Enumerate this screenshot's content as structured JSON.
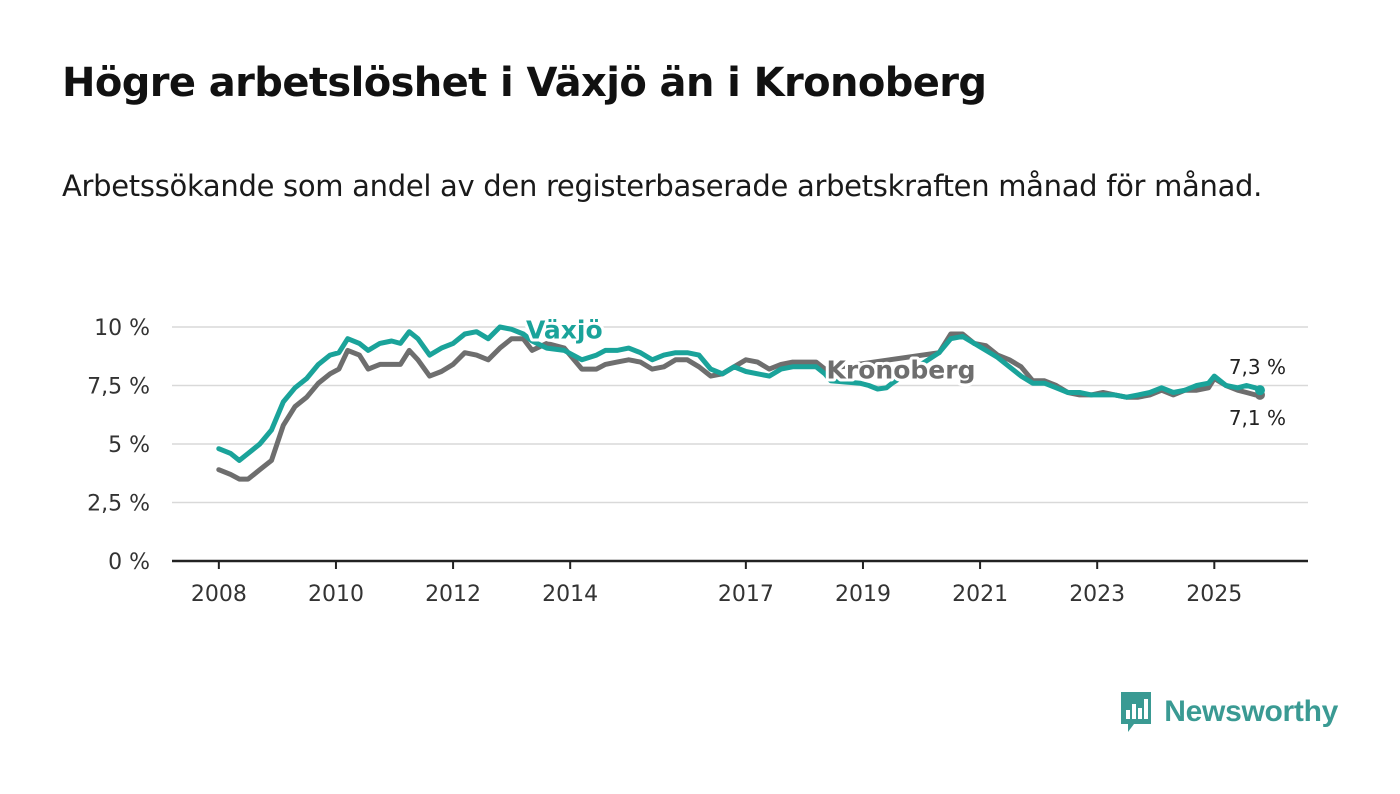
{
  "title": "Högre arbetslöshet i Växjö än i Kronoberg",
  "subtitle": "Arbetssökande som andel av den registerbaserade arbetskraften månad för månad.",
  "brand": {
    "name": "Newsworthy",
    "icon": "newsworthy-logo-icon"
  },
  "colors": {
    "vaxjo": "#1aa39a",
    "kronoberg": "#6e6e6e",
    "grid": "#d9d9d9",
    "axis": "#222222",
    "brand": "#3a9a93"
  },
  "chart_data": {
    "type": "line",
    "title": "Högre arbetslöshet i Växjö än i Kronoberg",
    "xlabel": "",
    "ylabel": "",
    "ylim": [
      0,
      10
    ],
    "xlim": [
      2007.2,
      2026.6
    ],
    "y_ticks": [
      0,
      2.5,
      5,
      7.5,
      10
    ],
    "y_tick_labels": [
      "0 %",
      "2,5 %",
      "5 %",
      "7,5 %",
      "10 %"
    ],
    "x_ticks": [
      2008,
      2010,
      2012,
      2014,
      2017,
      2019,
      2021,
      2023,
      2025
    ],
    "x_tick_labels": [
      "2008",
      "2010",
      "2012",
      "2014",
      "2017",
      "2019",
      "2021",
      "2023",
      "2025"
    ],
    "grid": true,
    "legend": "inline labels",
    "series": [
      {
        "name": "Växjö",
        "label": "Växjö",
        "end_label": "7,3 %",
        "points": [
          [
            2008.0,
            4.8
          ],
          [
            2008.2,
            4.6
          ],
          [
            2008.35,
            4.3
          ],
          [
            2008.5,
            4.6
          ],
          [
            2008.7,
            5.0
          ],
          [
            2008.9,
            5.6
          ],
          [
            2009.1,
            6.8
          ],
          [
            2009.3,
            7.4
          ],
          [
            2009.5,
            7.8
          ],
          [
            2009.7,
            8.4
          ],
          [
            2009.9,
            8.8
          ],
          [
            2010.05,
            8.9
          ],
          [
            2010.2,
            9.5
          ],
          [
            2010.4,
            9.3
          ],
          [
            2010.55,
            9.0
          ],
          [
            2010.75,
            9.3
          ],
          [
            2010.95,
            9.4
          ],
          [
            2011.1,
            9.3
          ],
          [
            2011.25,
            9.8
          ],
          [
            2011.4,
            9.5
          ],
          [
            2011.6,
            8.8
          ],
          [
            2011.8,
            9.1
          ],
          [
            2012.0,
            9.3
          ],
          [
            2012.2,
            9.7
          ],
          [
            2012.4,
            9.8
          ],
          [
            2012.6,
            9.5
          ],
          [
            2012.8,
            10.0
          ],
          [
            2013.0,
            9.9
          ],
          [
            2013.2,
            9.7
          ],
          [
            2013.35,
            9.4
          ],
          [
            2013.6,
            9.1
          ],
          [
            2013.9,
            9.0
          ],
          [
            2014.2,
            8.6
          ],
          [
            2014.45,
            8.8
          ],
          [
            2014.6,
            9.0
          ],
          [
            2014.8,
            9.0
          ],
          [
            2015.0,
            9.1
          ],
          [
            2015.2,
            8.9
          ],
          [
            2015.4,
            8.6
          ],
          [
            2015.6,
            8.8
          ],
          [
            2015.8,
            8.9
          ],
          [
            2016.0,
            8.9
          ],
          [
            2016.2,
            8.8
          ],
          [
            2016.4,
            8.2
          ],
          [
            2016.6,
            8.0
          ],
          [
            2016.8,
            8.3
          ],
          [
            2017.0,
            8.1
          ],
          [
            2017.2,
            8.0
          ],
          [
            2017.4,
            7.9
          ],
          [
            2017.6,
            8.2
          ],
          [
            2017.8,
            8.3
          ],
          [
            2018.0,
            8.3
          ],
          [
            2018.2,
            8.3
          ],
          [
            2018.35,
            8.0
          ],
          [
            2018.45,
            7.7
          ],
          [
            2018.95,
            7.6
          ],
          [
            2019.1,
            7.5
          ],
          [
            2019.25,
            7.35
          ],
          [
            2019.4,
            7.4
          ],
          [
            2019.5,
            7.6
          ],
          [
            2020.3,
            8.9
          ],
          [
            2020.5,
            9.5
          ],
          [
            2020.7,
            9.6
          ],
          [
            2020.9,
            9.3
          ],
          [
            2021.1,
            9.0
          ],
          [
            2021.3,
            8.7
          ],
          [
            2021.5,
            8.3
          ],
          [
            2021.7,
            7.9
          ],
          [
            2021.9,
            7.6
          ],
          [
            2022.1,
            7.6
          ],
          [
            2022.3,
            7.4
          ],
          [
            2022.5,
            7.2
          ],
          [
            2022.7,
            7.2
          ],
          [
            2022.9,
            7.1
          ],
          [
            2023.1,
            7.1
          ],
          [
            2023.3,
            7.1
          ],
          [
            2023.5,
            7.0
          ],
          [
            2023.7,
            7.1
          ],
          [
            2023.9,
            7.2
          ],
          [
            2024.1,
            7.4
          ],
          [
            2024.3,
            7.2
          ],
          [
            2024.5,
            7.3
          ],
          [
            2024.7,
            7.5
          ],
          [
            2024.9,
            7.6
          ],
          [
            2025.0,
            7.9
          ],
          [
            2025.2,
            7.5
          ],
          [
            2025.4,
            7.4
          ],
          [
            2025.55,
            7.5
          ],
          [
            2025.7,
            7.4
          ],
          [
            2025.78,
            7.3
          ]
        ]
      },
      {
        "name": "Kronoberg",
        "label": "Kronoberg",
        "end_label": "7,1 %",
        "points": [
          [
            2008.0,
            3.9
          ],
          [
            2008.2,
            3.7
          ],
          [
            2008.35,
            3.5
          ],
          [
            2008.5,
            3.5
          ],
          [
            2008.7,
            3.9
          ],
          [
            2008.9,
            4.3
          ],
          [
            2009.1,
            5.8
          ],
          [
            2009.3,
            6.6
          ],
          [
            2009.5,
            7.0
          ],
          [
            2009.7,
            7.6
          ],
          [
            2009.9,
            8.0
          ],
          [
            2010.05,
            8.2
          ],
          [
            2010.2,
            9.0
          ],
          [
            2010.4,
            8.8
          ],
          [
            2010.55,
            8.2
          ],
          [
            2010.75,
            8.4
          ],
          [
            2010.95,
            8.4
          ],
          [
            2011.1,
            8.4
          ],
          [
            2011.25,
            9.0
          ],
          [
            2011.4,
            8.6
          ],
          [
            2011.6,
            7.9
          ],
          [
            2011.8,
            8.1
          ],
          [
            2012.0,
            8.4
          ],
          [
            2012.2,
            8.9
          ],
          [
            2012.4,
            8.8
          ],
          [
            2012.6,
            8.6
          ],
          [
            2012.8,
            9.1
          ],
          [
            2013.0,
            9.5
          ],
          [
            2013.2,
            9.5
          ],
          [
            2013.35,
            9.0
          ],
          [
            2013.6,
            9.3
          ],
          [
            2013.9,
            9.1
          ],
          [
            2014.2,
            8.2
          ],
          [
            2014.45,
            8.2
          ],
          [
            2014.6,
            8.4
          ],
          [
            2014.8,
            8.5
          ],
          [
            2015.0,
            8.6
          ],
          [
            2015.2,
            8.5
          ],
          [
            2015.4,
            8.2
          ],
          [
            2015.6,
            8.3
          ],
          [
            2015.8,
            8.6
          ],
          [
            2016.0,
            8.6
          ],
          [
            2016.2,
            8.3
          ],
          [
            2016.4,
            7.9
          ],
          [
            2016.6,
            8.0
          ],
          [
            2016.8,
            8.3
          ],
          [
            2017.0,
            8.6
          ],
          [
            2017.2,
            8.5
          ],
          [
            2017.4,
            8.2
          ],
          [
            2017.6,
            8.4
          ],
          [
            2017.8,
            8.5
          ],
          [
            2018.0,
            8.5
          ],
          [
            2018.2,
            8.5
          ],
          [
            2018.35,
            8.2
          ],
          [
            2020.3,
            8.9
          ],
          [
            2020.5,
            9.7
          ],
          [
            2020.7,
            9.7
          ],
          [
            2020.9,
            9.3
          ],
          [
            2021.1,
            9.2
          ],
          [
            2021.3,
            8.8
          ],
          [
            2021.5,
            8.6
          ],
          [
            2021.7,
            8.3
          ],
          [
            2021.9,
            7.7
          ],
          [
            2022.1,
            7.7
          ],
          [
            2022.3,
            7.5
          ],
          [
            2022.5,
            7.2
          ],
          [
            2022.7,
            7.1
          ],
          [
            2022.9,
            7.1
          ],
          [
            2023.1,
            7.2
          ],
          [
            2023.3,
            7.1
          ],
          [
            2023.5,
            7.0
          ],
          [
            2023.7,
            7.0
          ],
          [
            2023.9,
            7.1
          ],
          [
            2024.1,
            7.3
          ],
          [
            2024.3,
            7.1
          ],
          [
            2024.5,
            7.3
          ],
          [
            2024.7,
            7.3
          ],
          [
            2024.9,
            7.4
          ],
          [
            2025.0,
            7.8
          ],
          [
            2025.2,
            7.5
          ],
          [
            2025.4,
            7.3
          ],
          [
            2025.55,
            7.2
          ],
          [
            2025.7,
            7.1
          ],
          [
            2025.78,
            7.1
          ]
        ]
      }
    ]
  }
}
